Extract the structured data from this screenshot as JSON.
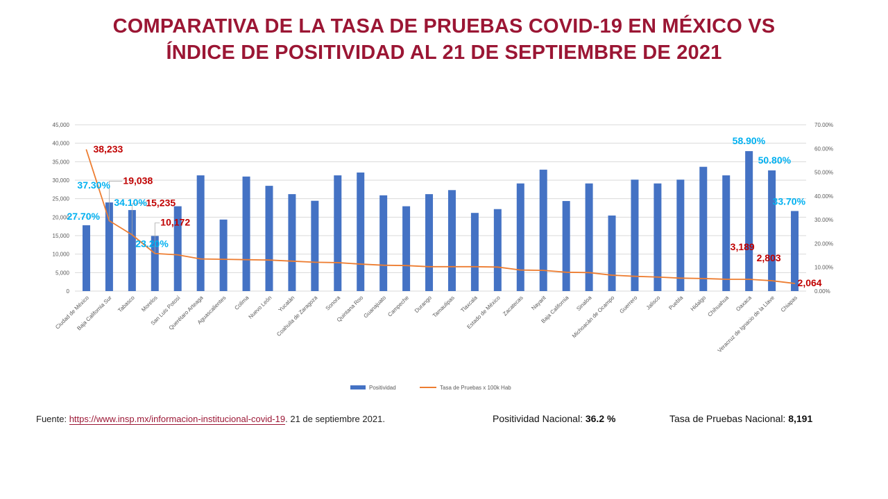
{
  "title_line1": "COMPARATIVA DE LA TASA DE PRUEBAS COVID-19  EN MÉXICO VS",
  "title_line2": "ÍNDICE DE POSITIVIDAD AL 21 DE SEPTIEMBRE DE 2021",
  "source": {
    "prefix": "Fuente: ",
    "link": "https://www.insp.mx/informacion-institucional-covid-19",
    "suffix": ". 21 de septiembre  2021."
  },
  "stats": {
    "positividad_label": "Positividad Nacional: ",
    "positividad_value": "36.2  %",
    "tasa_label": "Tasa de Pruebas Nacional: ",
    "tasa_value": "8,191"
  },
  "colors": {
    "title": "#9b1634",
    "bar": "#4472c4",
    "line": "#ed7d31",
    "label_red": "#c00000",
    "label_cyan": "#00b0f0"
  },
  "chart_data": {
    "type": "bar",
    "categories": [
      "Ciudad de México",
      "Baja California Sur",
      "Tabasco",
      "Morelos",
      "San Luis Potosí",
      "Querétaro Arteaga",
      "Aguascalientes",
      "Colima",
      "Nuevo León",
      "Yucatán",
      "Coahuila de Zaragoza",
      "Sonora",
      "Quintana Roo",
      "Guanajuato",
      "Campeche",
      "Durango",
      "Tamaulipas",
      "Tlaxcala",
      "Estado de México",
      "Zacatecas",
      "Nayarit",
      "Baja California",
      "Sinaloa",
      "Michoacán de Ocampo",
      "Guerrero",
      "Jalisco",
      "Puebla",
      "Hidalgo",
      "Chihuahua",
      "Oaxaca",
      "Veracruz de Ignacio de la Llave",
      "Chiapas"
    ],
    "series": [
      {
        "name": "Positividad",
        "type": "bar",
        "axis": "right",
        "values": [
          27.7,
          37.3,
          34.1,
          23.2,
          35.7,
          48.7,
          30.1,
          48.2,
          44.3,
          40.8,
          38.0,
          48.7,
          49.9,
          40.3,
          35.7,
          40.8,
          42.5,
          32.9,
          34.5,
          45.3,
          51.1,
          37.9,
          45.3,
          31.8,
          46.9,
          45.3,
          46.9,
          52.3,
          48.7,
          58.9,
          50.8,
          33.7
        ]
      },
      {
        "name": "Tasa de Pruebas x 100k Hab",
        "type": "line",
        "axis": "left",
        "values": [
          38233,
          19038,
          15235,
          10172,
          9800,
          8700,
          8600,
          8500,
          8400,
          8100,
          7800,
          7700,
          7300,
          7000,
          6900,
          6600,
          6600,
          6600,
          6500,
          5700,
          5600,
          5100,
          5000,
          4300,
          4000,
          3800,
          3500,
          3400,
          3200,
          3189,
          2803,
          2064
        ]
      }
    ],
    "left_axis": {
      "min": 0,
      "max": 45000,
      "step": 5000,
      "ticks": [
        "0",
        "5,000",
        "10,000",
        "15,000",
        "20,000",
        "25,000",
        "30,000",
        "35,000",
        "40,000",
        "45,000"
      ]
    },
    "right_axis": {
      "min": 0,
      "max": 70,
      "step": 10,
      "ticks": [
        "0.00%",
        "10.00%",
        "20.00%",
        "30.00%",
        "40.00%",
        "50.00%",
        "60.00%",
        "70.00%"
      ]
    },
    "grid": true,
    "legend_position": "bottom",
    "legend": [
      "Positividad",
      "Tasa de Pruebas x 100k Hab"
    ],
    "value_labels": [
      {
        "text": "38,233",
        "color": "red"
      },
      {
        "text": "19,038",
        "color": "red"
      },
      {
        "text": "15,235",
        "color": "red"
      },
      {
        "text": "10,172",
        "color": "red"
      },
      {
        "text": "3,189",
        "color": "red"
      },
      {
        "text": "2,803",
        "color": "red"
      },
      {
        "text": "2,064",
        "color": "red"
      },
      {
        "text": "27.70%",
        "color": "cyan"
      },
      {
        "text": "37.30%",
        "color": "cyan"
      },
      {
        "text": "34.10%",
        "color": "cyan"
      },
      {
        "text": "23.20%",
        "color": "cyan"
      },
      {
        "text": "58.90%",
        "color": "cyan"
      },
      {
        "text": "50.80%",
        "color": "cyan"
      },
      {
        "text": "33.70%",
        "color": "cyan"
      }
    ]
  }
}
